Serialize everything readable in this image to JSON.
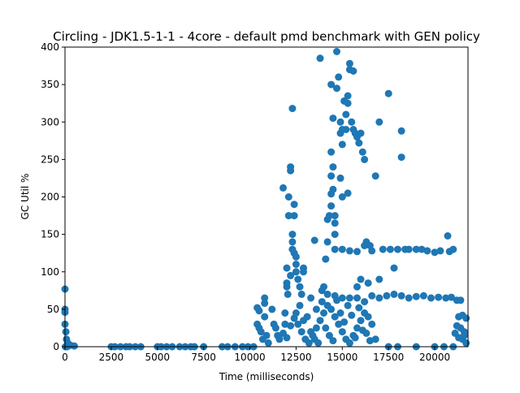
{
  "colors": {
    "marker": "#1f77b4",
    "axes": "#000000",
    "background": "#ffffff"
  },
  "chart_data": {
    "type": "scatter",
    "title": "Circling - JDK1.5-1-1 - 4core -  default pmd benchmark with GEN policy",
    "xlabel": "Time (milliseconds)",
    "ylabel": "GC Util %",
    "xlim": [
      0,
      21800
    ],
    "ylim": [
      0,
      400
    ],
    "grid": false,
    "legend": "none",
    "x_ticks": [
      0,
      2500,
      5000,
      7500,
      10000,
      12500,
      15000,
      17500,
      20000
    ],
    "x_tick_labels": [
      "0",
      "2500",
      "5000",
      "7500",
      "10000",
      "12500",
      "15000",
      "17500",
      "20000"
    ],
    "y_ticks": [
      0,
      50,
      100,
      150,
      200,
      250,
      300,
      350,
      400
    ],
    "y_tick_labels": [
      "0",
      "50",
      "100",
      "150",
      "200",
      "250",
      "300",
      "350",
      "400"
    ],
    "series": [
      {
        "values": [
          [
            0,
            77
          ],
          [
            0,
            50
          ],
          [
            0,
            46
          ],
          [
            0,
            30
          ],
          [
            50,
            20
          ],
          [
            80,
            10
          ],
          [
            150,
            5
          ],
          [
            300,
            2
          ],
          [
            500,
            1
          ],
          [
            120,
            0
          ],
          [
            20,
            0
          ],
          [
            2500,
            0
          ],
          [
            2700,
            0
          ],
          [
            3000,
            0
          ],
          [
            3300,
            0
          ],
          [
            3500,
            0
          ],
          [
            3800,
            0
          ],
          [
            4100,
            0
          ],
          [
            5000,
            0
          ],
          [
            5200,
            0
          ],
          [
            5500,
            0
          ],
          [
            5800,
            0
          ],
          [
            6200,
            0
          ],
          [
            6500,
            0
          ],
          [
            6800,
            0
          ],
          [
            7000,
            0
          ],
          [
            7500,
            0
          ],
          [
            8500,
            0
          ],
          [
            8800,
            0
          ],
          [
            9200,
            0
          ],
          [
            9600,
            0
          ],
          [
            9900,
            0
          ],
          [
            10200,
            0
          ],
          [
            10400,
            52
          ],
          [
            10500,
            48
          ],
          [
            10400,
            30
          ],
          [
            10500,
            25
          ],
          [
            10600,
            20
          ],
          [
            10700,
            10
          ],
          [
            10800,
            65
          ],
          [
            10800,
            58
          ],
          [
            10800,
            40
          ],
          [
            10900,
            15
          ],
          [
            11000,
            5
          ],
          [
            11200,
            50
          ],
          [
            11300,
            30
          ],
          [
            11400,
            25
          ],
          [
            11500,
            15
          ],
          [
            11600,
            10
          ],
          [
            11800,
            212
          ],
          [
            11900,
            45
          ],
          [
            11900,
            30
          ],
          [
            12000,
            105
          ],
          [
            12000,
            85
          ],
          [
            12000,
            80
          ],
          [
            12050,
            70
          ],
          [
            12100,
            200
          ],
          [
            12100,
            175
          ],
          [
            12200,
            240
          ],
          [
            12200,
            235
          ],
          [
            12300,
            318
          ],
          [
            12300,
            150
          ],
          [
            12300,
            140
          ],
          [
            12400,
            190
          ],
          [
            12400,
            175
          ],
          [
            12400,
            125
          ],
          [
            12300,
            130
          ],
          [
            12200,
            95
          ],
          [
            12500,
            120
          ],
          [
            12500,
            110
          ],
          [
            12500,
            100
          ],
          [
            12600,
            90
          ],
          [
            12700,
            80
          ],
          [
            12800,
            70
          ],
          [
            12900,
            105
          ],
          [
            12900,
            100
          ],
          [
            13300,
            65
          ],
          [
            13500,
            142
          ],
          [
            13600,
            50
          ],
          [
            13800,
            385
          ],
          [
            13900,
            75
          ],
          [
            14000,
            80
          ],
          [
            14100,
            117
          ],
          [
            14200,
            170
          ],
          [
            14300,
            175
          ],
          [
            14400,
            350
          ],
          [
            14400,
            260
          ],
          [
            14400,
            228
          ],
          [
            14400,
            204
          ],
          [
            14400,
            188
          ],
          [
            14500,
            305
          ],
          [
            14500,
            240
          ],
          [
            14500,
            210
          ],
          [
            14600,
            175
          ],
          [
            14600,
            165
          ],
          [
            14600,
            150
          ],
          [
            14700,
            394
          ],
          [
            14700,
            345
          ],
          [
            14800,
            360
          ],
          [
            14900,
            300
          ],
          [
            14900,
            285
          ],
          [
            14900,
            225
          ],
          [
            15000,
            270
          ],
          [
            15000,
            290
          ],
          [
            15000,
            200
          ],
          [
            15100,
            328
          ],
          [
            15200,
            310
          ],
          [
            15200,
            290
          ],
          [
            15300,
            335
          ],
          [
            15300,
            325
          ],
          [
            15300,
            205
          ],
          [
            15400,
            378
          ],
          [
            15400,
            370
          ],
          [
            15500,
            300
          ],
          [
            15600,
            368
          ],
          [
            15600,
            290
          ],
          [
            15700,
            285
          ],
          [
            15800,
            280
          ],
          [
            15900,
            272
          ],
          [
            16000,
            285
          ],
          [
            16100,
            260
          ],
          [
            16200,
            250
          ],
          [
            16300,
            140
          ],
          [
            16500,
            135
          ],
          [
            16800,
            228
          ],
          [
            17000,
            300
          ],
          [
            17200,
            130
          ],
          [
            17500,
            338
          ],
          [
            17600,
            130
          ],
          [
            17800,
            105
          ],
          [
            18000,
            130
          ],
          [
            18200,
            288
          ],
          [
            18200,
            253
          ],
          [
            18400,
            130
          ],
          [
            18600,
            130
          ],
          [
            19000,
            130
          ],
          [
            19300,
            130
          ],
          [
            19600,
            128
          ],
          [
            20000,
            126
          ],
          [
            20300,
            128
          ],
          [
            20700,
            148
          ],
          [
            20800,
            127
          ],
          [
            21000,
            130
          ],
          [
            14200,
            140
          ],
          [
            14600,
            130
          ],
          [
            15000,
            130
          ],
          [
            15400,
            128
          ],
          [
            15800,
            127
          ],
          [
            16200,
            135
          ],
          [
            16600,
            128
          ],
          [
            14200,
            70
          ],
          [
            14600,
            68
          ],
          [
            15000,
            65
          ],
          [
            15400,
            65
          ],
          [
            15800,
            65
          ],
          [
            16200,
            60
          ],
          [
            16600,
            68
          ],
          [
            17000,
            65
          ],
          [
            17400,
            68
          ],
          [
            17800,
            70
          ],
          [
            18200,
            68
          ],
          [
            18600,
            65
          ],
          [
            19000,
            67
          ],
          [
            19400,
            68
          ],
          [
            19800,
            65
          ],
          [
            20200,
            66
          ],
          [
            20600,
            65
          ],
          [
            20900,
            66
          ],
          [
            21200,
            62
          ],
          [
            15800,
            80
          ],
          [
            16000,
            90
          ],
          [
            16400,
            85
          ],
          [
            17000,
            90
          ],
          [
            12600,
            30
          ],
          [
            12800,
            20
          ],
          [
            13000,
            10
          ],
          [
            13200,
            5
          ],
          [
            13400,
            15
          ],
          [
            13600,
            25
          ],
          [
            13800,
            35
          ],
          [
            14000,
            45
          ],
          [
            14200,
            55
          ],
          [
            14400,
            50
          ],
          [
            14600,
            40
          ],
          [
            14800,
            30
          ],
          [
            15000,
            20
          ],
          [
            15200,
            10
          ],
          [
            15400,
            5
          ],
          [
            15600,
            15
          ],
          [
            15800,
            25
          ],
          [
            16000,
            35
          ],
          [
            16200,
            45
          ],
          [
            16400,
            40
          ],
          [
            16600,
            30
          ],
          [
            16800,
            10
          ],
          [
            12500,
            45
          ],
          [
            12700,
            55
          ],
          [
            12900,
            35
          ],
          [
            13100,
            40
          ],
          [
            13300,
            20
          ],
          [
            13500,
            10
          ],
          [
            13700,
            5
          ],
          [
            13900,
            60
          ],
          [
            14100,
            25
          ],
          [
            14300,
            15
          ],
          [
            14500,
            8
          ],
          [
            14700,
            62
          ],
          [
            14900,
            45
          ],
          [
            15100,
            33
          ],
          [
            15300,
            55
          ],
          [
            15500,
            42
          ],
          [
            15700,
            12
          ],
          [
            15900,
            52
          ],
          [
            16100,
            22
          ],
          [
            16300,
            18
          ],
          [
            16500,
            8
          ],
          [
            11800,
            18
          ],
          [
            12000,
            12
          ],
          [
            12200,
            28
          ],
          [
            12400,
            38
          ],
          [
            17500,
            0
          ],
          [
            18000,
            0
          ],
          [
            19000,
            0
          ],
          [
            20000,
            0
          ],
          [
            20500,
            0
          ],
          [
            21000,
            0
          ],
          [
            21300,
            40
          ],
          [
            21500,
            42
          ],
          [
            21700,
            38
          ],
          [
            21400,
            25
          ],
          [
            21600,
            20
          ],
          [
            21500,
            10
          ],
          [
            21700,
            5
          ],
          [
            21300,
            12
          ],
          [
            21100,
            18
          ],
          [
            21200,
            28
          ],
          [
            21400,
            62
          ],
          [
            21600,
            15
          ]
        ]
      }
    ]
  }
}
